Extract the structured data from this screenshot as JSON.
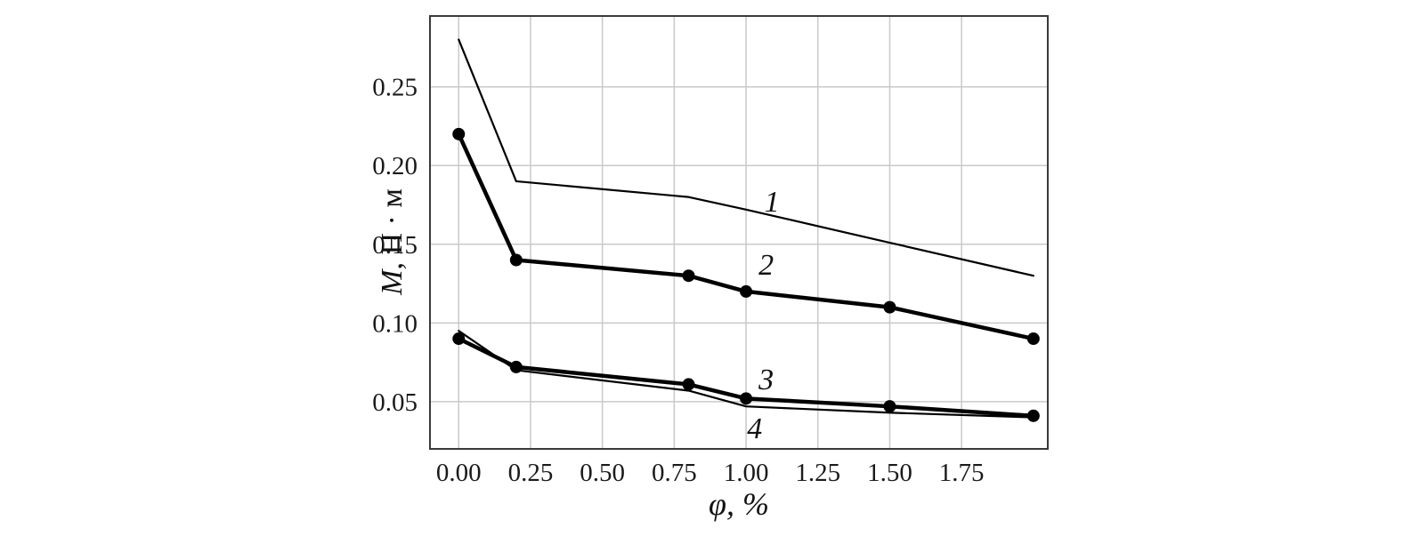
{
  "chart_data": {
    "type": "line",
    "title": "",
    "xlabel": "φ, %",
    "ylabel": "M, Н · м",
    "ylabel_italic": "M",
    "ylabel_rest": ", Н · м",
    "xlim": [
      -0.1,
      2.05
    ],
    "ylim": [
      0.02,
      0.295
    ],
    "xticks": [
      0.0,
      0.25,
      0.5,
      0.75,
      1.0,
      1.25,
      1.5,
      1.75
    ],
    "yticks": [
      0.05,
      0.1,
      0.15,
      0.2,
      0.25
    ],
    "grid": true,
    "legend_position": "inline-curve-labels",
    "x": [
      0.0,
      0.2,
      0.8,
      1.0,
      1.5,
      2.0
    ],
    "series": [
      {
        "name": "1",
        "values": [
          0.28,
          0.19,
          0.18,
          0.172,
          0.151,
          0.13
        ],
        "marker": false,
        "line_width": 2.2,
        "label": "1",
        "label_at": [
          1.09,
          0.177
        ]
      },
      {
        "name": "2",
        "values": [
          0.22,
          0.14,
          0.13,
          0.12,
          0.11,
          0.09
        ],
        "marker": true,
        "line_width": 4.5,
        "label": "2",
        "label_at": [
          1.07,
          0.137
        ]
      },
      {
        "name": "3",
        "values": [
          0.09,
          0.072,
          0.061,
          0.052,
          0.047,
          0.041
        ],
        "marker": true,
        "line_width": 4.5,
        "label": "3",
        "label_at": [
          1.07,
          0.064
        ]
      },
      {
        "name": "4",
        "values": [
          0.095,
          0.07,
          0.057,
          0.047,
          0.043,
          0.04
        ],
        "marker": false,
        "line_width": 2.2,
        "label": "4",
        "label_at": [
          1.03,
          0.033
        ]
      }
    ],
    "colors": {
      "line": "#000000",
      "grid": "#c9c9c9",
      "border": "#3a3a3a",
      "text": "#1a1a1a",
      "background": "#ffffff"
    }
  }
}
